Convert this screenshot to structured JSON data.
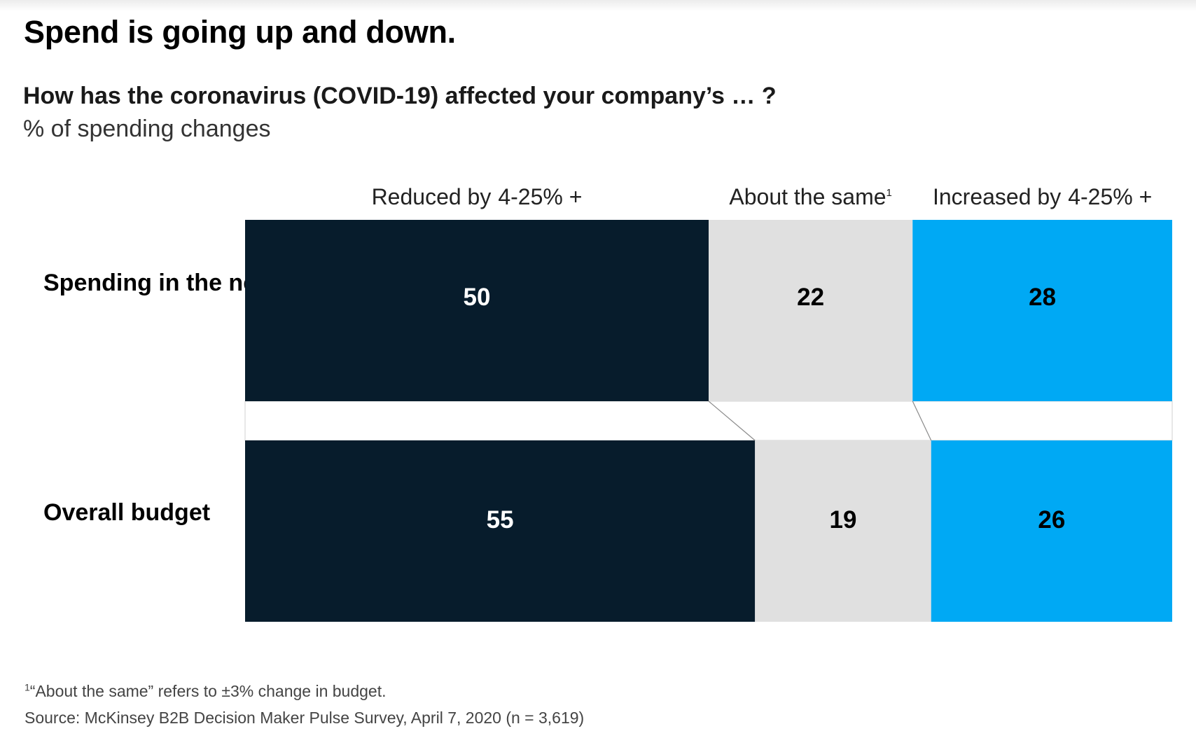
{
  "title": "Spend is going up and down.",
  "question": "How has the coronavirus (COVID-19) affected your company’s … ?",
  "unit_label": "% of spending changes",
  "footnote_marker": "1",
  "footnote": "“About the same” refers to ±3% change in budget.",
  "source": "Source: McKinsey B2B Decision Maker Pulse Survey, April 7, 2020 (n = 3,619)",
  "colors": {
    "reduced": "#071c2c",
    "same": "#e0e0e0",
    "increased": "#00a9f4",
    "connector": "#8a8a8a"
  },
  "chart_data": {
    "type": "bar",
    "orientation": "horizontal",
    "stacked": true,
    "title": "Spend is going up and down.",
    "subtitle": "How has the coronavirus (COVID-19) affected your company’s … ?",
    "ylabel": "% of spending changes",
    "xlim": [
      0,
      100
    ],
    "categories": [
      "Spending in the next two weeks",
      "Overall budget"
    ],
    "series": [
      {
        "name": "Reduced by 4-25% +",
        "label_parts": [
          "Reduced by",
          "4-25% +"
        ],
        "color": "#071c2c",
        "label_color": "#ffffff",
        "values": [
          50,
          55
        ]
      },
      {
        "name": "About the same",
        "label_parts": [
          "About the same"
        ],
        "superscript": "1",
        "color": "#e0e0e0",
        "label_color": "#000000",
        "values": [
          22,
          19
        ]
      },
      {
        "name": "Increased by 4-25% +",
        "label_parts": [
          "Increased by",
          "4-25% +"
        ],
        "color": "#00a9f4",
        "label_color": "#000000",
        "values": [
          28,
          26
        ]
      }
    ]
  }
}
